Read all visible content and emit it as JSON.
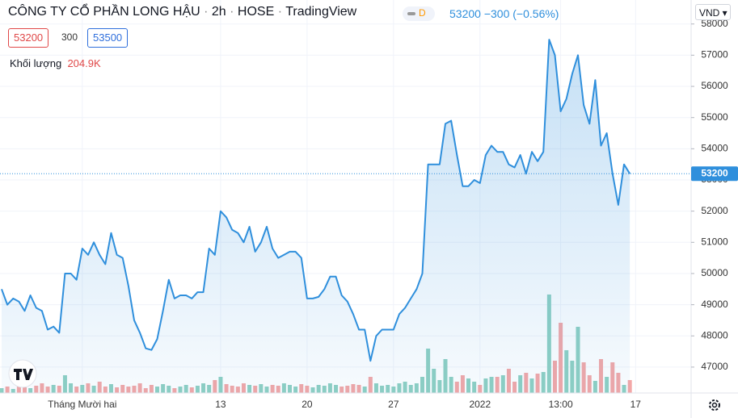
{
  "header": {
    "title": "CÔNG TY CỔ PHẦN LONG HẬU",
    "interval": "2h",
    "exchange": "HOSE",
    "source": "TradingView",
    "badge": "D",
    "last": "53200",
    "change": "−300",
    "change_pct": "(−0.56%)",
    "bid": "53200",
    "spread": "300",
    "ask": "53500",
    "volume_value": "204.9K",
    "currency": "VND"
  },
  "chart_data": {
    "type": "area",
    "categories": [
      null,
      null,
      null,
      null,
      null,
      null,
      null,
      null,
      null,
      null,
      null,
      null,
      null,
      null,
      "Tháng Mười hai",
      null,
      null,
      null,
      null,
      null,
      null,
      null,
      null,
      null,
      null,
      null,
      null,
      null,
      null,
      null,
      null,
      null,
      null,
      null,
      null,
      null,
      null,
      null,
      "13",
      null,
      null,
      null,
      null,
      null,
      null,
      null,
      null,
      null,
      null,
      null,
      null,
      null,
      null,
      "20",
      null,
      null,
      null,
      null,
      null,
      null,
      null,
      null,
      null,
      null,
      null,
      null,
      null,
      null,
      "27",
      null,
      null,
      null,
      null,
      null,
      null,
      null,
      null,
      null,
      null,
      null,
      null,
      null,
      null,
      "2022",
      null,
      null,
      null,
      null,
      null,
      null,
      null,
      null,
      null,
      null,
      null,
      null,
      null,
      "13:00",
      null,
      null,
      null,
      null,
      null,
      null,
      null,
      null,
      null,
      null,
      null,
      null,
      "17"
    ],
    "series": [
      {
        "color": "#2f8fdc",
        "values": [
          49500,
          49000,
          49200,
          49100,
          48800,
          49300,
          48900,
          48800,
          48200,
          48300,
          48100,
          50000,
          50000,
          49800,
          50800,
          50600,
          51000,
          50600,
          50300,
          51300,
          50600,
          50500,
          49600,
          48500,
          48100,
          47600,
          47550,
          47900,
          48800,
          49800,
          49200,
          49300,
          49300,
          49200,
          49400,
          49400,
          50800,
          50600,
          52000,
          51800,
          51400,
          51300,
          51000,
          51500,
          50700,
          51000,
          51500,
          50800,
          50500,
          50600,
          50700,
          50700,
          50500,
          49200,
          49200,
          49250,
          49500,
          49900,
          49900,
          49300,
          49100,
          48700,
          48200,
          48200,
          47200,
          48000,
          48200,
          48200,
          48200,
          48700,
          48900,
          49200,
          49500,
          50000,
          53500,
          53500,
          53500,
          54800,
          54900,
          53800,
          52800,
          52800,
          53000,
          52900,
          53800,
          54100,
          53900,
          53900,
          53500,
          53400,
          53800,
          53200,
          53900,
          53600,
          53900,
          57500,
          57000,
          55200,
          55600,
          56400,
          57000,
          55400,
          54800,
          56200,
          54100,
          54500,
          53200,
          52200,
          53500,
          53200,
          null
        ]
      },
      {
        "name": "Khối lượng",
        "axis": "y2",
        "up_color": "#8fd0c3",
        "down_color": "#f3a7a7",
        "values": [
          76800,
          102400,
          64000,
          128000,
          89600,
          76800,
          115200,
          153600,
          102400,
          128000,
          115200,
          281600,
          153600,
          102400,
          128000,
          153600,
          115200,
          179200,
          102400,
          140800,
          89600,
          128000,
          102400,
          115200,
          153600,
          76800,
          128000,
          102400,
          140800,
          115200,
          76800,
          102400,
          128000,
          89600,
          115200,
          153600,
          128000,
          204800,
          256000,
          140800,
          115200,
          102400,
          153600,
          128000,
          115200,
          140800,
          102400,
          128000,
          115200,
          153600,
          128000,
          102400,
          140800,
          115200,
          89600,
          128000,
          115200,
          153600,
          128000,
          102400,
          115200,
          140800,
          128000,
          102400,
          256000,
          153600,
          115200,
          128000,
          102400,
          153600,
          179200,
          128000,
          153600,
          256000,
          704000,
          384000,
          204800,
          537600,
          256000,
          179200,
          281600,
          230400,
          179200,
          128000,
          230400,
          256000,
          256000,
          281600,
          384000,
          179200,
          281600,
          320000,
          230400,
          307200,
          332800,
          1561600,
          512000,
          1113600,
          678400,
          512000,
          1049600,
          486400,
          281600,
          192000,
          537600,
          256000,
          486400,
          320000,
          128000,
          204900,
          null
        ]
      }
    ],
    "ylim": [
      46170,
      58200
    ],
    "yticks": [
      47000,
      48000,
      49000,
      50000,
      51000,
      52000,
      53000,
      54000,
      55000,
      56000,
      57000,
      58000
    ],
    "y2lim": [
      0,
      5950000
    ],
    "grid": true
  }
}
